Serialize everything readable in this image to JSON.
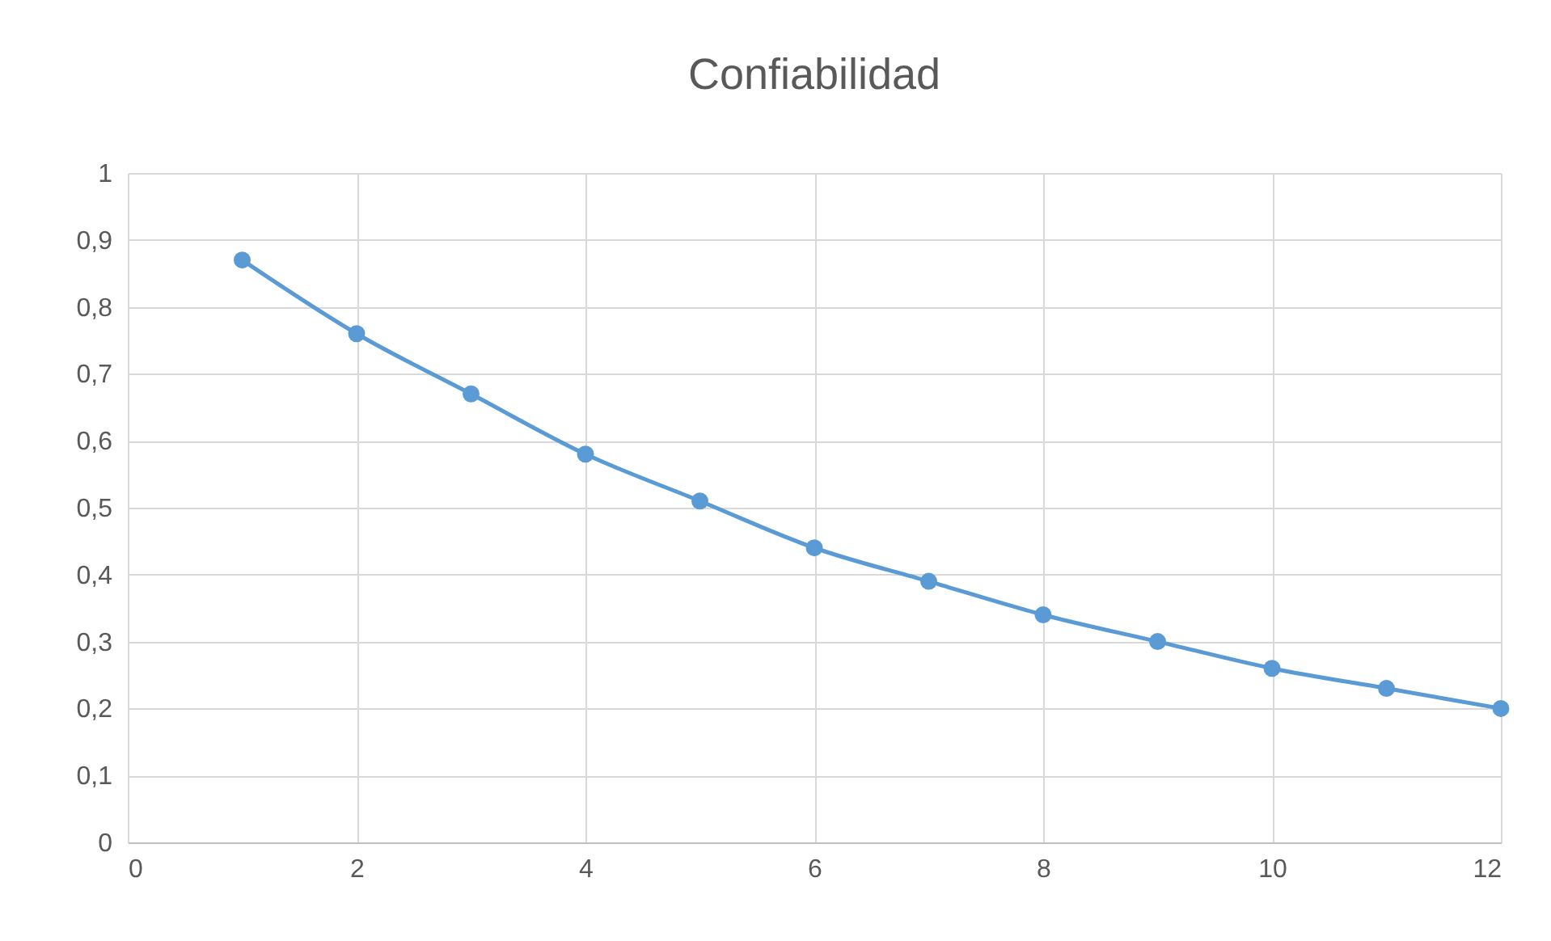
{
  "chart_data": {
    "type": "line",
    "title": "Confiabilidad",
    "x": [
      1,
      2,
      3,
      4,
      5,
      6,
      7,
      8,
      9,
      10,
      11,
      12
    ],
    "series": [
      {
        "color": "#5b9bd5",
        "values": [
          0.87,
          0.76,
          0.67,
          0.58,
          0.51,
          0.44,
          0.39,
          0.34,
          0.3,
          0.26,
          0.23,
          0.2
        ]
      }
    ],
    "xlim": [
      0,
      12
    ],
    "xticks": [
      0,
      2,
      4,
      6,
      8,
      10,
      12
    ],
    "ylim": [
      0,
      1
    ],
    "yticks": [
      0,
      {
        "value": 0.1,
        "label": "0,1"
      },
      {
        "value": 0.2,
        "label": "0,2"
      },
      {
        "value": 0.3,
        "label": "0,3"
      },
      {
        "value": 0.4,
        "label": "0,4"
      },
      {
        "value": 0.5,
        "label": "0,5"
      },
      {
        "value": 0.6,
        "label": "0,6"
      },
      {
        "value": 0.7,
        "label": "0,7"
      },
      {
        "value": 0.8,
        "label": "0,8"
      },
      {
        "value": 0.9,
        "label": "0,9"
      },
      1
    ],
    "grid": true,
    "marker": "circle",
    "line_style": "solid"
  }
}
